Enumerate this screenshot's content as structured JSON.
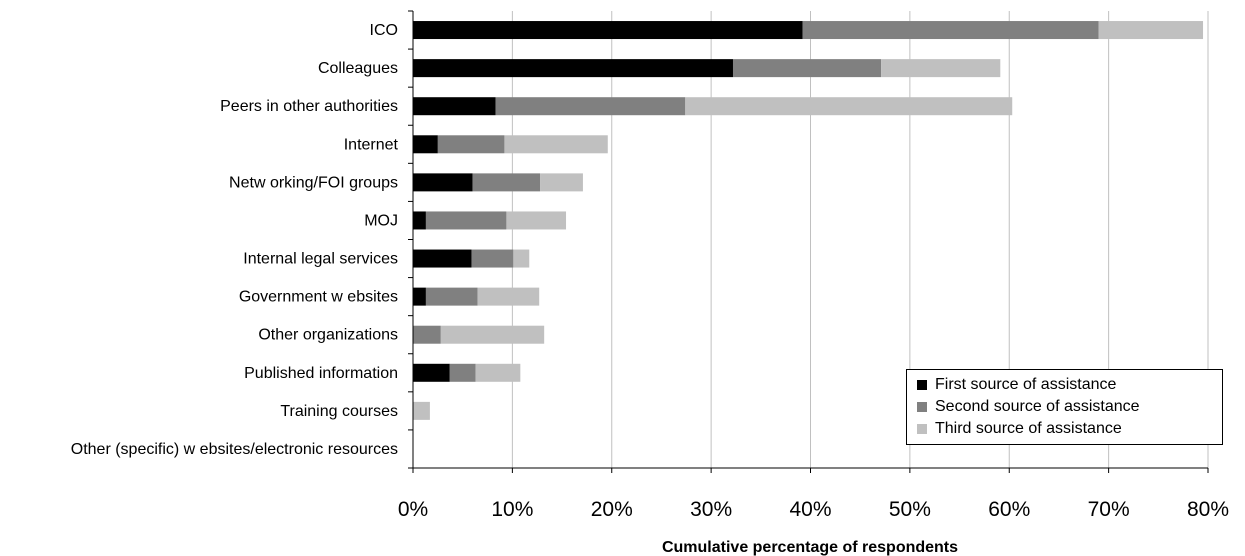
{
  "chart_data": {
    "type": "bar",
    "orientation": "horizontal",
    "stacked": true,
    "xlabel": "Cumulative percentage of respondents",
    "ylabel": "",
    "xlim": [
      0,
      80
    ],
    "xticks": [
      "0%",
      "10%",
      "20%",
      "30%",
      "40%",
      "50%",
      "60%",
      "70%",
      "80%"
    ],
    "grid": "vertical gridlines",
    "legend_position": "bottom-right",
    "categories": [
      "ICO",
      "Colleagues",
      "Peers in other authorities",
      "Internet",
      "Netw orking/FOI groups",
      "MOJ",
      "Internal legal services",
      "Government w ebsites",
      "Other organizations",
      "Published information",
      "Training courses",
      "Other (specific) w ebsites/electronic resources"
    ],
    "series": [
      {
        "name": "First source of assistance",
        "color": "#000000",
        "values": [
          39.2,
          32.2,
          8.3,
          2.5,
          6.0,
          1.3,
          5.9,
          1.3,
          0,
          3.7,
          0,
          0
        ]
      },
      {
        "name": "Second source of assistance",
        "color": "#808080",
        "values": [
          29.8,
          14.9,
          19.1,
          6.7,
          6.8,
          8.1,
          4.2,
          5.2,
          2.8,
          2.6,
          0,
          0
        ]
      },
      {
        "name": "Third source of assistance",
        "color": "#c0c0c0",
        "values": [
          10.5,
          12.0,
          32.9,
          10.4,
          4.3,
          6.0,
          1.6,
          6.2,
          10.4,
          4.5,
          1.7,
          0
        ]
      }
    ]
  }
}
